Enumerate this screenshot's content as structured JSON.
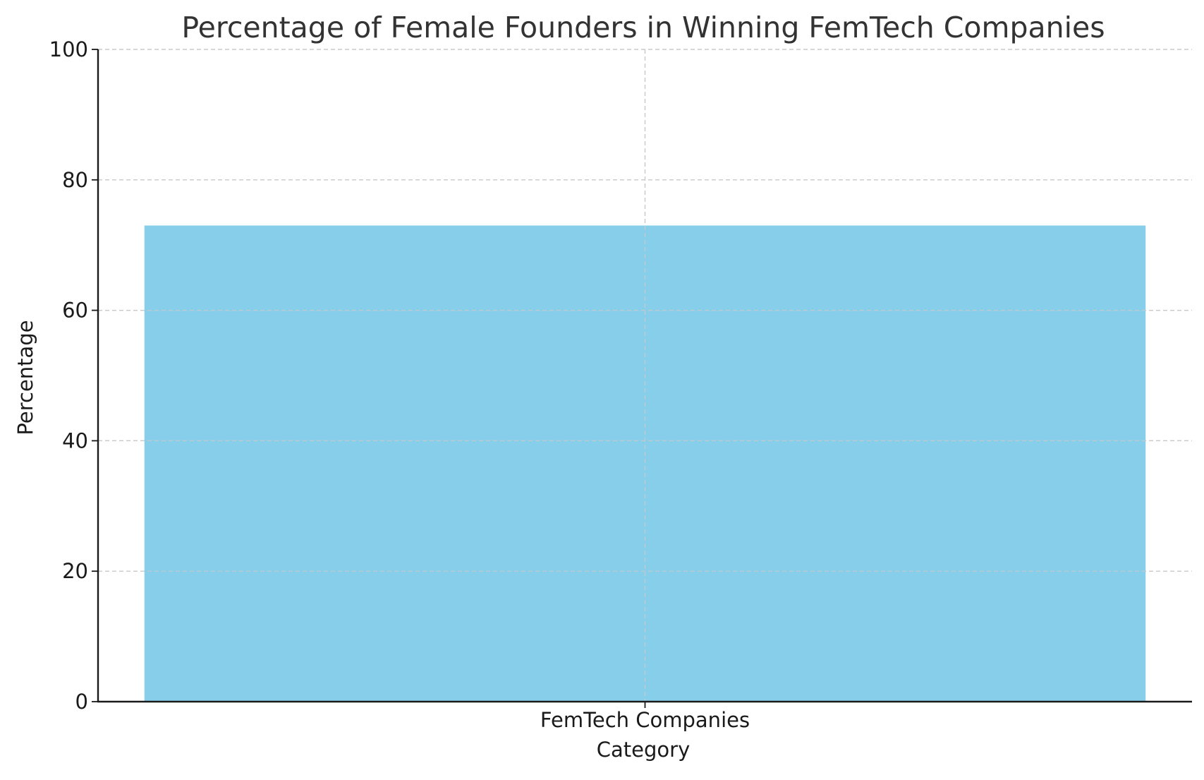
{
  "chart_data": {
    "type": "bar",
    "title": "Percentage of Female Founders in Winning FemTech Companies",
    "xlabel": "Category",
    "ylabel": "Percentage",
    "categories": [
      "FemTech Companies"
    ],
    "values": [
      73
    ],
    "ylim": [
      0,
      100
    ],
    "yticks": [
      0,
      20,
      40,
      60,
      80,
      100
    ],
    "grid": true,
    "bar_color": "#87CEEB"
  }
}
